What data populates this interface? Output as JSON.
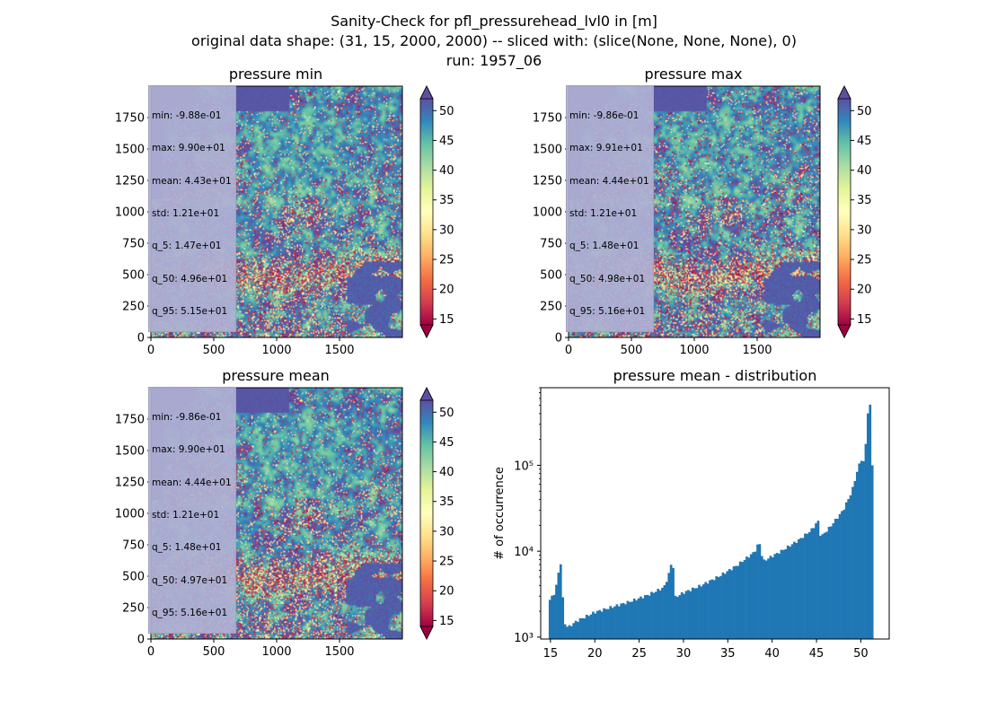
{
  "figure": {
    "title_lines": [
      "Sanity-Check for pfl_pressurehead_lvl0 in [m]",
      "original data shape: (31, 15, 2000, 2000) -- sliced with: (slice(None, None, None), 0)",
      "run: 1957_06"
    ]
  },
  "colormap": {
    "name": "Spectral",
    "stops": [
      "#9e0142",
      "#d53e4f",
      "#f46d43",
      "#fdae61",
      "#fee08b",
      "#ffffbf",
      "#e6f598",
      "#abdda4",
      "#66c2a5",
      "#3288bd",
      "#5e4fa2"
    ],
    "vmin": 14,
    "vmax": 52,
    "extend": "both",
    "tick_values": [
      15,
      20,
      25,
      30,
      35,
      40,
      45,
      50
    ],
    "tick_labels": [
      "15",
      "20",
      "25",
      "30",
      "35",
      "40",
      "45",
      "50"
    ]
  },
  "chart_data": [
    {
      "type": "heatmap",
      "id": "pressure-min",
      "title": "pressure min",
      "xlim": [
        0,
        2000
      ],
      "ylim": [
        0,
        2000
      ],
      "x_ticks": [
        "0",
        "500",
        "1000",
        "1500"
      ],
      "y_ticks": [
        "0",
        "250",
        "500",
        "750",
        "1000",
        "1250",
        "1500",
        "1750"
      ],
      "stats": [
        "min: -9.88e-01",
        "max: 9.90e+01",
        "mean: 4.43e+01",
        "std: 1.21e+01",
        "q_5: 1.47e+01",
        "q_50: 4.96e+01",
        "q_95: 5.15e+01"
      ]
    },
    {
      "type": "heatmap",
      "id": "pressure-max",
      "title": "pressure max",
      "xlim": [
        0,
        2000
      ],
      "ylim": [
        0,
        2000
      ],
      "x_ticks": [
        "0",
        "500",
        "1000",
        "1500"
      ],
      "y_ticks": [
        "0",
        "250",
        "500",
        "750",
        "1000",
        "1250",
        "1500",
        "1750"
      ],
      "stats": [
        "min: -9.86e-01",
        "max: 9.91e+01",
        "mean: 4.44e+01",
        "std: 1.21e+01",
        "q_5: 1.48e+01",
        "q_50: 4.98e+01",
        "q_95: 5.16e+01"
      ]
    },
    {
      "type": "heatmap",
      "id": "pressure-mean",
      "title": "pressure mean",
      "xlim": [
        0,
        2000
      ],
      "ylim": [
        0,
        2000
      ],
      "x_ticks": [
        "0",
        "500",
        "1000",
        "1500"
      ],
      "y_ticks": [
        "0",
        "250",
        "500",
        "750",
        "1000",
        "1250",
        "1500",
        "1750"
      ],
      "stats": [
        "min: -9.86e-01",
        "max: 9.90e+01",
        "mean: 4.44e+01",
        "std: 1.21e+01",
        "q_5: 1.48e+01",
        "q_50: 4.97e+01",
        "q_95: 5.16e+01"
      ]
    },
    {
      "type": "bar",
      "id": "pressure-mean-distribution",
      "title": "pressure mean - distribution",
      "xlabel": "",
      "ylabel": "# of occurrence",
      "yscale": "log",
      "xlim": [
        13.9,
        53.2
      ],
      "ylim": [
        950,
        800000
      ],
      "x_ticks": [
        15,
        20,
        25,
        30,
        35,
        40,
        45,
        50
      ],
      "y_ticks": [
        {
          "value": 1000,
          "label": "10³"
        },
        {
          "value": 10000,
          "label": "10⁴"
        },
        {
          "value": 100000,
          "label": "10⁵"
        }
      ],
      "bar_color": "#1f77b4",
      "bin_range": [
        14.8,
        51.4
      ],
      "keypoints": [
        [
          14.8,
          2600
        ],
        [
          15.4,
          3200
        ],
        [
          15.8,
          4500
        ],
        [
          16.05,
          7800
        ],
        [
          16.3,
          6500
        ],
        [
          16.45,
          1500
        ],
        [
          17.0,
          1300
        ],
        [
          18.0,
          1550
        ],
        [
          20.0,
          1950
        ],
        [
          22.0,
          2250
        ],
        [
          24.0,
          2600
        ],
        [
          26.0,
          3100
        ],
        [
          27.8,
          3800
        ],
        [
          28.3,
          5200
        ],
        [
          28.7,
          7800
        ],
        [
          28.9,
          6000
        ],
        [
          29.05,
          2900
        ],
        [
          30.0,
          3300
        ],
        [
          32.0,
          4000
        ],
        [
          34.0,
          5100
        ],
        [
          36.0,
          6800
        ],
        [
          38.0,
          9800
        ],
        [
          38.5,
          12500
        ],
        [
          38.75,
          11500
        ],
        [
          38.9,
          7500
        ],
        [
          39.5,
          8200
        ],
        [
          41.0,
          10000
        ],
        [
          43.0,
          13500
        ],
        [
          44.5,
          18000
        ],
        [
          45.0,
          21500
        ],
        [
          45.3,
          22500
        ],
        [
          45.45,
          14500
        ],
        [
          46.5,
          19000
        ],
        [
          48.0,
          30000
        ],
        [
          49.0,
          50000
        ],
        [
          49.7,
          95000
        ],
        [
          50.1,
          120000
        ],
        [
          50.4,
          105000
        ],
        [
          50.7,
          300000
        ],
        [
          50.85,
          520000
        ],
        [
          51.1,
          480000
        ],
        [
          51.25,
          120000
        ],
        [
          51.4,
          48000
        ]
      ]
    }
  ]
}
